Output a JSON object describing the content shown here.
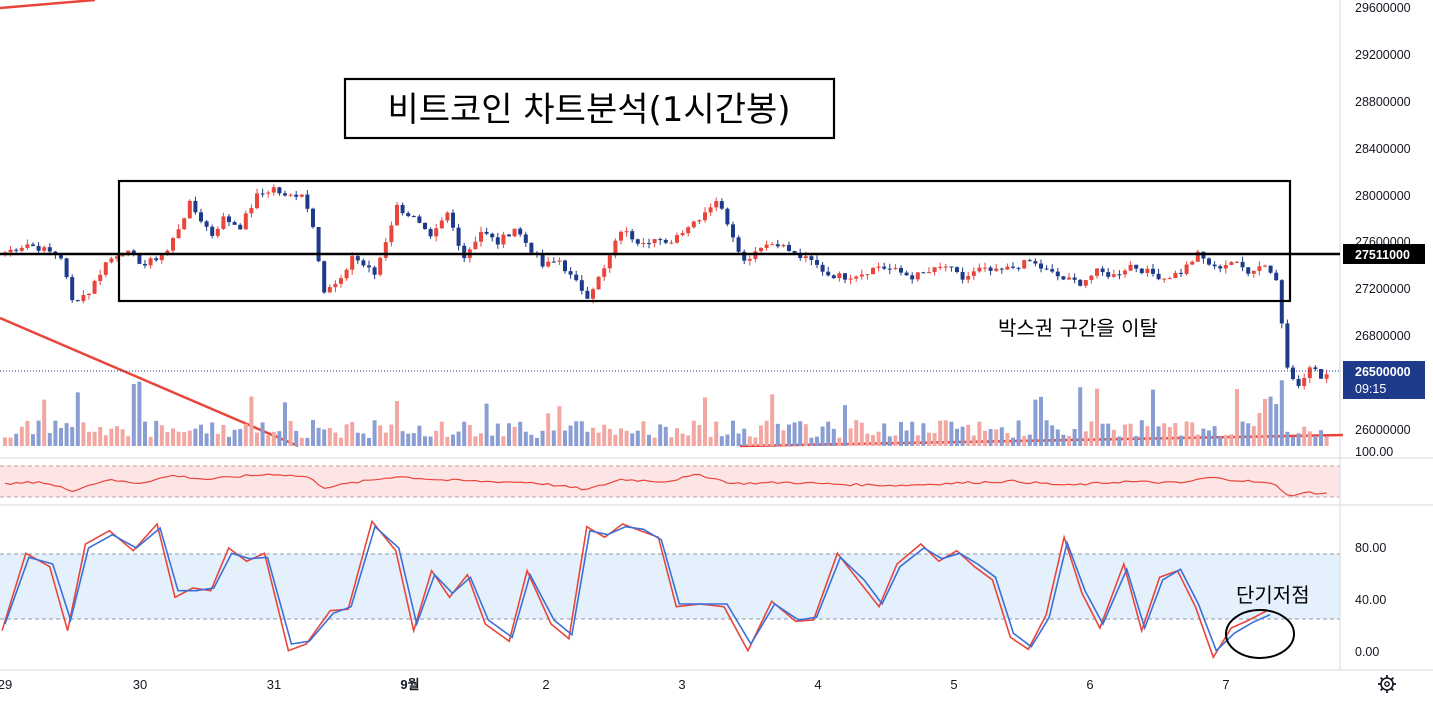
{
  "chart_data": {
    "type": "candlestick",
    "title": "비트코인 차트분석(1시간봉)",
    "price_axis": {
      "ticks": [
        "29600000",
        "29200000",
        "28800000",
        "28400000",
        "28000000",
        "27600000",
        "27200000",
        "26800000",
        "26500000",
        "26000000"
      ],
      "range": [
        25880000,
        29700000
      ]
    },
    "rsi_axis": {
      "ticks": [
        "100.00"
      ]
    },
    "stoch_axis": {
      "ticks": [
        "80.00",
        "40.00",
        "0.00"
      ],
      "range": [
        -8,
        112
      ],
      "upper_band": 75,
      "lower_band": 25
    },
    "x_labels": [
      "29",
      "30",
      "31",
      "9월",
      "2",
      "3",
      "4",
      "5",
      "6",
      "7"
    ],
    "horizontal_level": {
      "value": 27511000,
      "label": "27511000"
    },
    "last_price": {
      "value": 26500000,
      "label": "26500000",
      "countdown": "09:15"
    },
    "box_range": {
      "high": 28140000,
      "low": 27110000
    },
    "annotations": {
      "breakout": "박스권 구간을 이탈",
      "short_low": "단기저점"
    },
    "candle_path": [
      [
        0,
        27540000
      ],
      [
        4,
        27610000
      ],
      [
        7,
        27560000
      ],
      [
        10,
        27500000
      ],
      [
        12,
        27120000
      ],
      [
        15,
        27200000
      ],
      [
        18,
        27450000
      ],
      [
        21,
        27560000
      ],
      [
        25,
        27430000
      ],
      [
        29,
        27550000
      ],
      [
        33,
        27950000
      ],
      [
        37,
        27690000
      ],
      [
        39,
        27830000
      ],
      [
        42,
        27760000
      ],
      [
        45,
        28020000
      ],
      [
        48,
        28090000
      ],
      [
        50,
        28010000
      ],
      [
        53,
        28050000
      ],
      [
        55,
        27780000
      ],
      [
        57,
        27200000
      ],
      [
        60,
        27290000
      ],
      [
        62,
        27510000
      ],
      [
        66,
        27350000
      ],
      [
        70,
        27930000
      ],
      [
        73,
        27830000
      ],
      [
        76,
        27650000
      ],
      [
        79,
        27870000
      ],
      [
        82,
        27500000
      ],
      [
        85,
        27720000
      ],
      [
        88,
        27620000
      ],
      [
        91,
        27750000
      ],
      [
        94,
        27560000
      ],
      [
        96,
        27420000
      ],
      [
        99,
        27470000
      ],
      [
        101,
        27330000
      ],
      [
        104,
        27170000
      ],
      [
        107,
        27390000
      ],
      [
        110,
        27730000
      ],
      [
        113,
        27640000
      ],
      [
        116,
        27650000
      ],
      [
        118,
        27600000
      ],
      [
        121,
        27730000
      ],
      [
        124,
        27840000
      ],
      [
        127,
        27990000
      ],
      [
        129,
        27800000
      ],
      [
        132,
        27460000
      ],
      [
        135,
        27600000
      ],
      [
        138,
        27620000
      ],
      [
        141,
        27520000
      ],
      [
        144,
        27460000
      ],
      [
        147,
        27350000
      ],
      [
        150,
        27330000
      ],
      [
        153,
        27360000
      ],
      [
        156,
        27420000
      ],
      [
        159,
        27380000
      ],
      [
        162,
        27330000
      ],
      [
        165,
        27370000
      ],
      [
        168,
        27420000
      ],
      [
        171,
        27310000
      ],
      [
        174,
        27390000
      ],
      [
        177,
        27370000
      ],
      [
        180,
        27410000
      ],
      [
        183,
        27460000
      ],
      [
        186,
        27380000
      ],
      [
        189,
        27310000
      ],
      [
        192,
        27280000
      ],
      [
        195,
        27370000
      ],
      [
        198,
        27340000
      ],
      [
        201,
        27430000
      ],
      [
        204,
        27370000
      ],
      [
        207,
        27320000
      ],
      [
        210,
        27370000
      ],
      [
        213,
        27520000
      ],
      [
        216,
        27400000
      ],
      [
        219,
        27460000
      ],
      [
        222,
        27380000
      ],
      [
        225,
        27440000
      ],
      [
        227,
        27300000
      ],
      [
        229,
        26580000
      ],
      [
        231,
        26380000
      ],
      [
        233,
        26550000
      ],
      [
        235,
        26480000
      ],
      [
        236,
        26500000
      ]
    ],
    "rsi_path": [
      [
        0,
        0.45
      ],
      [
        6,
        0.55
      ],
      [
        12,
        0.25
      ],
      [
        18,
        0.6
      ],
      [
        24,
        0.5
      ],
      [
        30,
        0.75
      ],
      [
        36,
        0.62
      ],
      [
        42,
        0.72
      ],
      [
        48,
        0.8
      ],
      [
        54,
        0.7
      ],
      [
        57,
        0.35
      ],
      [
        62,
        0.5
      ],
      [
        70,
        0.72
      ],
      [
        78,
        0.6
      ],
      [
        86,
        0.55
      ],
      [
        94,
        0.52
      ],
      [
        100,
        0.38
      ],
      [
        104,
        0.28
      ],
      [
        110,
        0.62
      ],
      [
        118,
        0.55
      ],
      [
        124,
        0.78
      ],
      [
        130,
        0.48
      ],
      [
        140,
        0.52
      ],
      [
        150,
        0.45
      ],
      [
        160,
        0.42
      ],
      [
        170,
        0.5
      ],
      [
        180,
        0.56
      ],
      [
        190,
        0.42
      ],
      [
        200,
        0.55
      ],
      [
        210,
        0.5
      ],
      [
        215,
        0.68
      ],
      [
        222,
        0.56
      ],
      [
        227,
        0.45
      ],
      [
        229,
        0.08
      ],
      [
        233,
        0.18
      ],
      [
        236,
        0.15
      ]
    ],
    "stoch_k": [
      [
        0,
        20
      ],
      [
        4,
        78
      ],
      [
        8,
        68
      ],
      [
        11,
        20
      ],
      [
        14,
        85
      ],
      [
        18,
        95
      ],
      [
        22,
        80
      ],
      [
        26,
        100
      ],
      [
        29,
        45
      ],
      [
        32,
        52
      ],
      [
        35,
        50
      ],
      [
        38,
        82
      ],
      [
        41,
        72
      ],
      [
        44,
        78
      ],
      [
        48,
        5
      ],
      [
        51,
        10
      ],
      [
        55,
        35
      ],
      [
        58,
        36
      ],
      [
        62,
        102
      ],
      [
        66,
        80
      ],
      [
        69,
        20
      ],
      [
        72,
        65
      ],
      [
        75,
        45
      ],
      [
        78,
        62
      ],
      [
        81,
        25
      ],
      [
        85,
        12
      ],
      [
        88,
        65
      ],
      [
        92,
        25
      ],
      [
        95,
        14
      ],
      [
        98,
        98
      ],
      [
        101,
        90
      ],
      [
        104,
        100
      ],
      [
        107,
        95
      ],
      [
        110,
        90
      ],
      [
        113,
        38
      ],
      [
        117,
        40
      ],
      [
        121,
        38
      ],
      [
        125,
        5
      ],
      [
        129,
        42
      ],
      [
        133,
        27
      ],
      [
        136,
        28
      ],
      [
        140,
        78
      ],
      [
        144,
        55
      ],
      [
        147,
        38
      ],
      [
        150,
        70
      ],
      [
        154,
        85
      ],
      [
        157,
        72
      ],
      [
        160,
        80
      ],
      [
        163,
        68
      ],
      [
        166,
        58
      ],
      [
        169,
        15
      ],
      [
        172,
        6
      ],
      [
        175,
        32
      ],
      [
        178,
        90
      ],
      [
        181,
        48
      ],
      [
        184,
        22
      ],
      [
        188,
        70
      ],
      [
        191,
        20
      ],
      [
        194,
        60
      ],
      [
        197,
        65
      ],
      [
        200,
        38
      ],
      [
        203,
        0
      ],
      [
        206,
        22
      ],
      [
        209,
        28
      ],
      [
        212,
        35
      ]
    ],
    "stoch_d": [
      [
        0,
        25
      ],
      [
        4,
        75
      ],
      [
        8,
        70
      ],
      [
        11,
        28
      ],
      [
        14,
        82
      ],
      [
        18,
        92
      ],
      [
        22,
        82
      ],
      [
        26,
        97
      ],
      [
        29,
        50
      ],
      [
        32,
        50
      ],
      [
        35,
        52
      ],
      [
        38,
        78
      ],
      [
        41,
        74
      ],
      [
        44,
        75
      ],
      [
        48,
        10
      ],
      [
        51,
        12
      ],
      [
        55,
        33
      ],
      [
        58,
        38
      ],
      [
        62,
        98
      ],
      [
        66,
        82
      ],
      [
        69,
        25
      ],
      [
        72,
        62
      ],
      [
        75,
        48
      ],
      [
        78,
        60
      ],
      [
        81,
        28
      ],
      [
        85,
        15
      ],
      [
        88,
        62
      ],
      [
        92,
        28
      ],
      [
        95,
        17
      ],
      [
        98,
        95
      ],
      [
        101,
        92
      ],
      [
        104,
        98
      ],
      [
        107,
        96
      ],
      [
        110,
        88
      ],
      [
        113,
        40
      ],
      [
        117,
        40
      ],
      [
        121,
        40
      ],
      [
        125,
        10
      ],
      [
        129,
        40
      ],
      [
        133,
        28
      ],
      [
        136,
        30
      ],
      [
        140,
        75
      ],
      [
        144,
        58
      ],
      [
        147,
        40
      ],
      [
        150,
        68
      ],
      [
        154,
        82
      ],
      [
        157,
        74
      ],
      [
        160,
        78
      ],
      [
        163,
        70
      ],
      [
        166,
        60
      ],
      [
        169,
        18
      ],
      [
        172,
        8
      ],
      [
        175,
        30
      ],
      [
        178,
        86
      ],
      [
        181,
        50
      ],
      [
        184,
        25
      ],
      [
        188,
        66
      ],
      [
        191,
        22
      ],
      [
        194,
        58
      ],
      [
        197,
        66
      ],
      [
        200,
        40
      ],
      [
        203,
        5
      ],
      [
        206,
        18
      ],
      [
        209,
        26
      ],
      [
        212,
        32
      ]
    ]
  }
}
